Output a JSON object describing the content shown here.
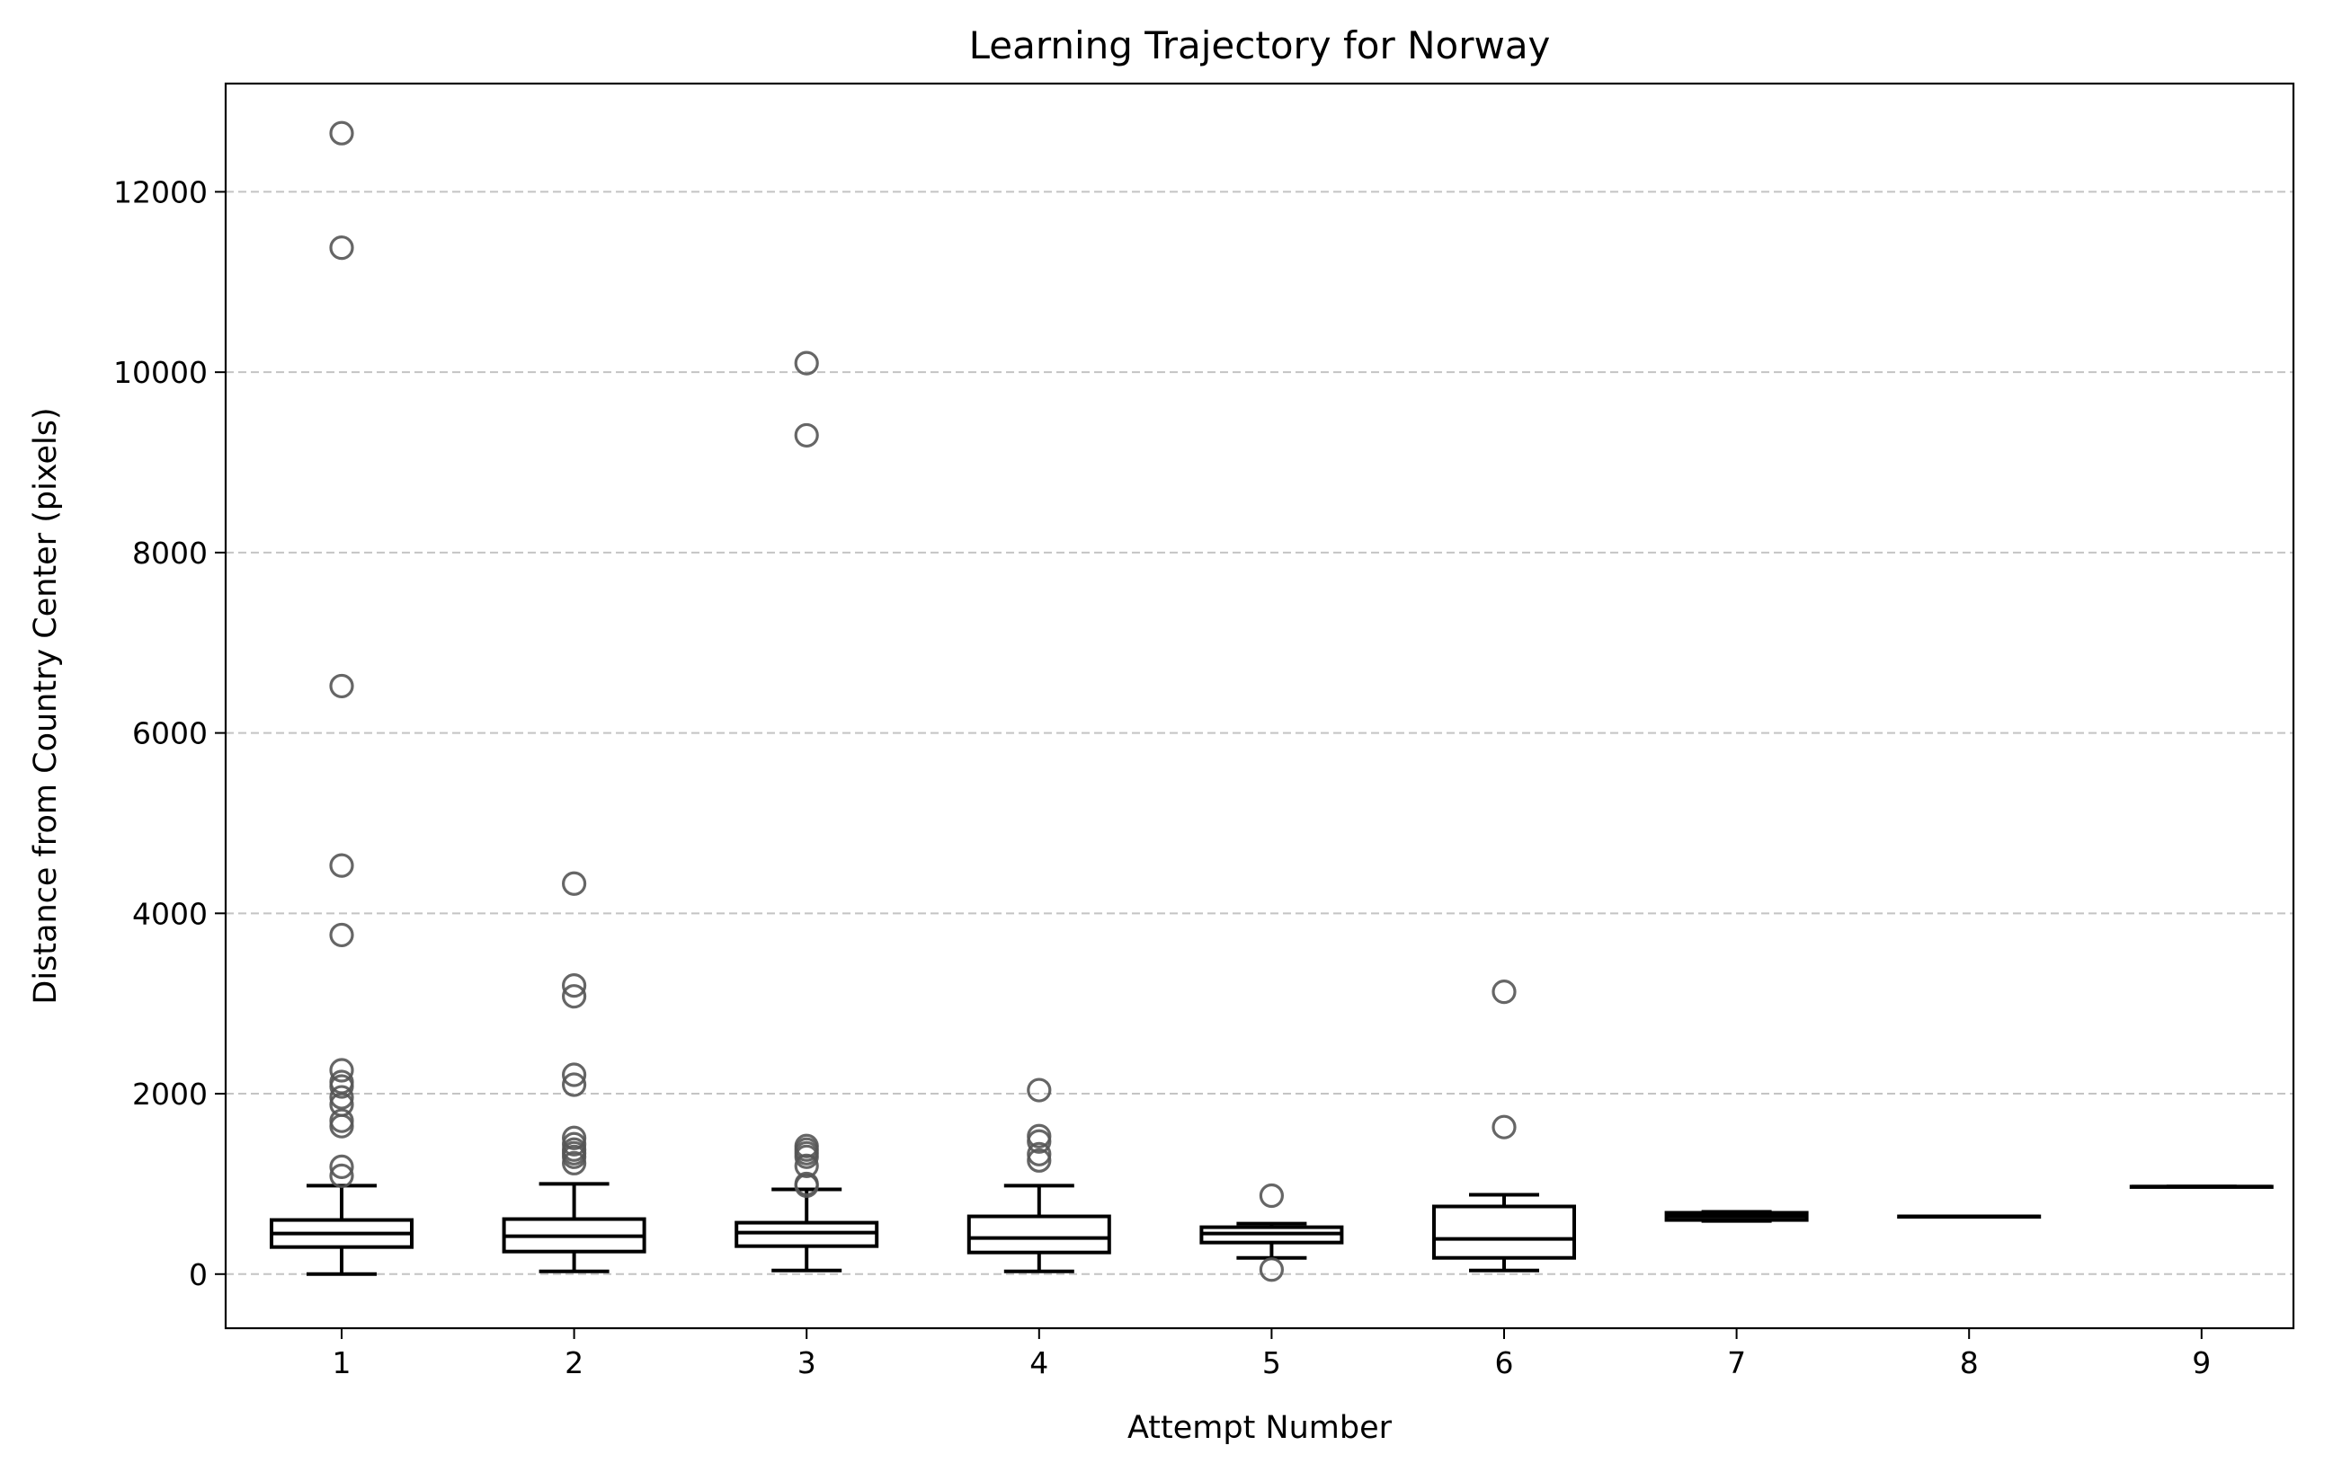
{
  "chart_data": {
    "type": "box",
    "title": "Learning Trajectory for Norway",
    "xlabel": "Attempt Number",
    "ylabel": "Distance from Country Center (pixels)",
    "ylim": [
      -600,
      13200
    ],
    "y_ticks": [
      0,
      2000,
      4000,
      6000,
      8000,
      10000,
      12000
    ],
    "grid": "y-dashed",
    "categories": [
      "1",
      "2",
      "3",
      "4",
      "5",
      "6",
      "7",
      "8",
      "9"
    ],
    "boxes": [
      {
        "category": "1",
        "whisker_low": 0,
        "q1": 300,
        "median": 450,
        "q3": 600,
        "whisker_high": 980,
        "outliers": [
          12650,
          11380,
          6520,
          4530,
          3760,
          2260,
          2130,
          2080,
          1960,
          1880,
          1700,
          1640,
          1190,
          1090
        ]
      },
      {
        "category": "2",
        "whisker_low": 30,
        "q1": 250,
        "median": 420,
        "q3": 610,
        "whisker_high": 1000,
        "outliers": [
          4330,
          3200,
          3080,
          2210,
          2100,
          1510,
          1440,
          1380,
          1340,
          1300,
          1230
        ]
      },
      {
        "category": "3",
        "whisker_low": 40,
        "q1": 310,
        "median": 460,
        "q3": 570,
        "whisker_high": 940,
        "outliers": [
          10100,
          9300,
          1420,
          1380,
          1340,
          1300,
          1200,
          1000,
          980
        ]
      },
      {
        "category": "4",
        "whisker_low": 30,
        "q1": 240,
        "median": 400,
        "q3": 640,
        "whisker_high": 980,
        "outliers": [
          2040,
          1530,
          1470,
          1330,
          1260
        ]
      },
      {
        "category": "5",
        "whisker_low": 180,
        "q1": 350,
        "median": 450,
        "q3": 520,
        "whisker_high": 560,
        "outliers": [
          870,
          50
        ]
      },
      {
        "category": "6",
        "whisker_low": 40,
        "q1": 180,
        "median": 390,
        "q3": 750,
        "whisker_high": 880,
        "outliers": [
          3130,
          1630
        ]
      },
      {
        "category": "7",
        "whisker_low": 590,
        "q1": 600,
        "median": 640,
        "q3": 680,
        "whisker_high": 690,
        "outliers": []
      },
      {
        "category": "8",
        "whisker_low": 640,
        "q1": 640,
        "median": 640,
        "q3": 640,
        "whisker_high": 640,
        "outliers": []
      },
      {
        "category": "9",
        "whisker_low": 970,
        "q1": 970,
        "median": 970,
        "q3": 970,
        "whisker_high": 970,
        "outliers": []
      }
    ],
    "colors": {
      "box": "#000000",
      "outlier_stroke": "#555555",
      "grid": "#c4c4c4"
    }
  }
}
